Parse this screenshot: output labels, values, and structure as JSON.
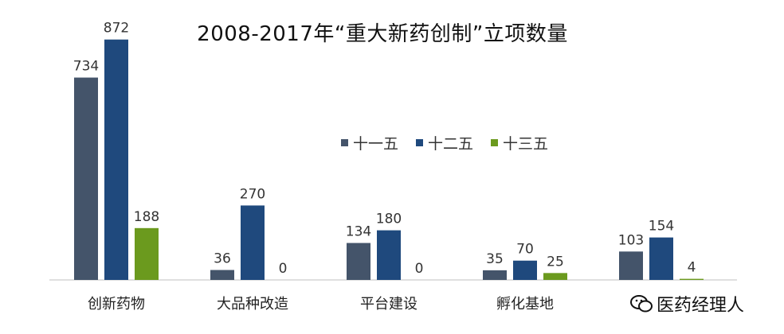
{
  "chart_data": {
    "type": "bar",
    "title": "2008-2017年“重大新药创制”立项数量",
    "categories": [
      "创新药物",
      "大品种改造",
      "平台建设",
      "孵化基地",
      ""
    ],
    "series": [
      {
        "name": "十一五",
        "color": "#44546a",
        "values": [
          734,
          36,
          134,
          35,
          103
        ]
      },
      {
        "name": "十二五",
        "color": "#1f497d",
        "values": [
          872,
          270,
          180,
          70,
          154
        ]
      },
      {
        "name": "十三五",
        "color": "#6b9a1e",
        "values": [
          188,
          0,
          0,
          25,
          4
        ]
      }
    ],
    "ylim": [
      0,
      900
    ],
    "legend_position": "center",
    "grid": false
  },
  "watermark": {
    "text": "医药经理人"
  }
}
